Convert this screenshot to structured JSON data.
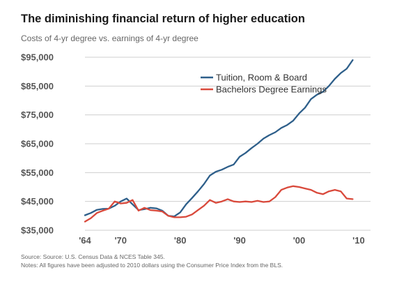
{
  "chart_data": {
    "type": "line",
    "title": "The diminishing financial return of higher education",
    "subtitle": "Costs of 4-yr degree vs. earnings of 4-yr degree",
    "xlabel": "",
    "ylabel": "",
    "xlim": [
      1964,
      2012
    ],
    "ylim": [
      35000,
      95000
    ],
    "y_ticks": [
      35000,
      45000,
      55000,
      65000,
      75000,
      85000,
      95000
    ],
    "y_tick_labels": [
      "$35,000",
      "$45,000",
      "$55,000",
      "$65,000",
      "$75,000",
      "$85,000",
      "$95,000"
    ],
    "x_ticks": [
      1964,
      1970,
      1980,
      1990,
      2000,
      2010
    ],
    "x_tick_labels": [
      "'64",
      "'70",
      "'80",
      "'90",
      "'00",
      "'10"
    ],
    "grid": true,
    "legend": "top-center",
    "series": [
      {
        "name": "Tuition, Room & Board",
        "color": "#2e5f8a",
        "points": [
          [
            1964,
            40200
          ],
          [
            1965,
            41000
          ],
          [
            1966,
            42100
          ],
          [
            1967,
            42400
          ],
          [
            1968,
            42500
          ],
          [
            1969,
            43500
          ],
          [
            1970,
            45000
          ],
          [
            1971,
            46000
          ],
          [
            1972,
            44000
          ],
          [
            1973,
            42000
          ],
          [
            1974,
            42300
          ],
          [
            1975,
            42800
          ],
          [
            1976,
            42600
          ],
          [
            1977,
            41800
          ],
          [
            1978,
            40000
          ],
          [
            1979,
            39800
          ],
          [
            1980,
            41200
          ],
          [
            1981,
            44000
          ],
          [
            1982,
            46200
          ],
          [
            1983,
            48500
          ],
          [
            1984,
            51000
          ],
          [
            1985,
            54000
          ],
          [
            1986,
            55300
          ],
          [
            1987,
            56000
          ],
          [
            1988,
            57000
          ],
          [
            1989,
            57800
          ],
          [
            1990,
            60500
          ],
          [
            1991,
            61800
          ],
          [
            1992,
            63500
          ],
          [
            1993,
            65000
          ],
          [
            1994,
            66800
          ],
          [
            1995,
            68000
          ],
          [
            1996,
            69000
          ],
          [
            1997,
            70500
          ],
          [
            1998,
            71500
          ],
          [
            1999,
            73000
          ],
          [
            2000,
            75500
          ],
          [
            2001,
            77500
          ],
          [
            2002,
            80500
          ],
          [
            2003,
            82000
          ],
          [
            2004,
            83000
          ],
          [
            2005,
            85000
          ],
          [
            2006,
            87500
          ],
          [
            2007,
            89500
          ],
          [
            2008,
            91000
          ],
          [
            2009,
            94000
          ]
        ]
      },
      {
        "name": "Bachelors Degree Earnings",
        "color": "#d9493b",
        "points": [
          [
            1964,
            38000
          ],
          [
            1965,
            39200
          ],
          [
            1966,
            41000
          ],
          [
            1967,
            41800
          ],
          [
            1968,
            42500
          ],
          [
            1969,
            45000
          ],
          [
            1970,
            44300
          ],
          [
            1971,
            44500
          ],
          [
            1972,
            45500
          ],
          [
            1973,
            41800
          ],
          [
            1974,
            42800
          ],
          [
            1975,
            42000
          ],
          [
            1976,
            41800
          ],
          [
            1977,
            41500
          ],
          [
            1978,
            40000
          ],
          [
            1979,
            39500
          ],
          [
            1980,
            39500
          ],
          [
            1981,
            39700
          ],
          [
            1982,
            40500
          ],
          [
            1983,
            42000
          ],
          [
            1984,
            43500
          ],
          [
            1985,
            45500
          ],
          [
            1986,
            44500
          ],
          [
            1987,
            45000
          ],
          [
            1988,
            45800
          ],
          [
            1989,
            45000
          ],
          [
            1990,
            44800
          ],
          [
            1991,
            45000
          ],
          [
            1992,
            44800
          ],
          [
            1993,
            45200
          ],
          [
            1994,
            44800
          ],
          [
            1995,
            45000
          ],
          [
            1996,
            46500
          ],
          [
            1997,
            49000
          ],
          [
            1998,
            49800
          ],
          [
            1999,
            50300
          ],
          [
            2000,
            50000
          ],
          [
            2001,
            49500
          ],
          [
            2002,
            49000
          ],
          [
            2003,
            48000
          ],
          [
            2004,
            47500
          ],
          [
            2005,
            48500
          ],
          [
            2006,
            49000
          ],
          [
            2007,
            48500
          ],
          [
            2008,
            46000
          ],
          [
            2009,
            45800
          ]
        ]
      }
    ]
  },
  "footer": {
    "source": "Source: Source: U.S. Census Data & NCES Table 345.",
    "notes": "Notes: All figures have been adjusted to 2010 dollars using the Consumer Price Index from the BLS."
  }
}
